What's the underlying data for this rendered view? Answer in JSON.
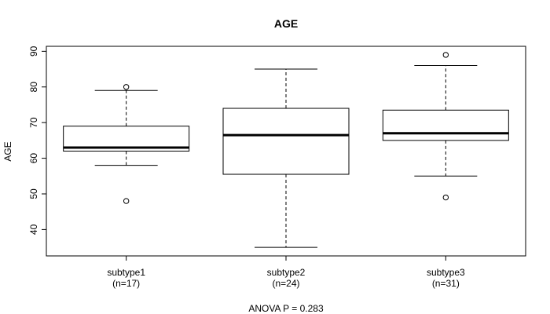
{
  "chart_data": {
    "type": "boxplot",
    "title": "AGE",
    "ylabel": "AGE",
    "xlabel": "",
    "ylim": [
      32.6,
      91.4
    ],
    "yticks": [
      40,
      50,
      60,
      70,
      80,
      90
    ],
    "grid": false,
    "footnote": "ANOVA P = 0.283",
    "groups": [
      {
        "name": "subtype1",
        "n_label": "(n=17)",
        "whisker_low": 58,
        "q1": 62,
        "median": 63,
        "q3": 69,
        "whisker_high": 79,
        "outliers": [
          48,
          80
        ]
      },
      {
        "name": "subtype2",
        "n_label": "(n=24)",
        "whisker_low": 35,
        "q1": 55.5,
        "median": 66.5,
        "q3": 74,
        "whisker_high": 85,
        "outliers": []
      },
      {
        "name": "subtype3",
        "n_label": "(n=31)",
        "whisker_low": 55,
        "q1": 65,
        "median": 67,
        "q3": 73.5,
        "whisker_high": 86,
        "outliers": [
          49,
          89
        ]
      }
    ]
  }
}
